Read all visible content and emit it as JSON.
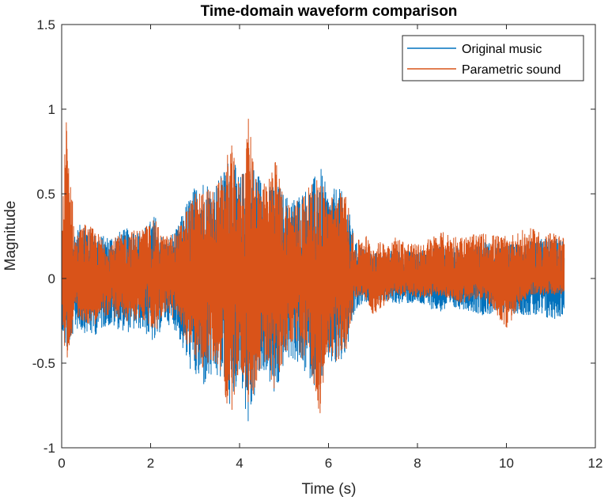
{
  "chart_data": {
    "type": "line",
    "title": "Time-domain waveform comparison",
    "xlabel": "Time (s)",
    "ylabel": "Magnitude",
    "xlim": [
      0,
      12
    ],
    "ylim": [
      -1,
      1.5
    ],
    "xticks": [
      0,
      2,
      4,
      6,
      8,
      10,
      12
    ],
    "yticks": [
      -1,
      -0.5,
      0,
      0.5,
      1,
      1.5
    ],
    "xtick_labels": [
      "0",
      "2",
      "4",
      "6",
      "8",
      "10",
      "12"
    ],
    "ytick_labels": [
      "-1",
      "-0.5",
      "0",
      "0.5",
      "1",
      "1.5"
    ],
    "grid": false,
    "legend_position": "top-right",
    "series": [
      {
        "name": "Original music",
        "color": "#0072BD",
        "x_range": [
          0,
          11.3
        ],
        "envelope": {
          "t": [
            0,
            0.1,
            0.3,
            0.5,
            0.7,
            1.0,
            1.5,
            1.8,
            2.1,
            2.3,
            2.6,
            2.8,
            3.0,
            3.2,
            3.4,
            3.6,
            3.8,
            4.0,
            4.2,
            4.4,
            4.6,
            4.8,
            5.0,
            5.2,
            5.4,
            5.6,
            5.8,
            6.0,
            6.2,
            6.4,
            6.6,
            6.8,
            7.0,
            7.5,
            8.0,
            8.5,
            9.0,
            9.5,
            10.0,
            10.5,
            11.0,
            11.3
          ],
          "upper": [
            0.25,
            0.32,
            0.28,
            0.35,
            0.27,
            0.25,
            0.3,
            0.28,
            0.38,
            0.22,
            0.3,
            0.45,
            0.55,
            0.6,
            0.55,
            0.62,
            0.75,
            0.6,
            0.7,
            0.65,
            0.52,
            0.6,
            0.5,
            0.48,
            0.52,
            0.55,
            0.68,
            0.5,
            0.55,
            0.48,
            0.22,
            0.18,
            0.15,
            0.17,
            0.16,
            0.2,
            0.18,
            0.22,
            0.2,
            0.22,
            0.25,
            0.22
          ],
          "lower": [
            -0.28,
            -0.45,
            -0.3,
            -0.32,
            -0.35,
            -0.28,
            -0.32,
            -0.3,
            -0.4,
            -0.25,
            -0.32,
            -0.5,
            -0.6,
            -0.65,
            -0.6,
            -0.62,
            -0.8,
            -0.55,
            -0.9,
            -0.62,
            -0.55,
            -0.75,
            -0.5,
            -0.48,
            -0.55,
            -0.6,
            -0.68,
            -0.5,
            -0.55,
            -0.45,
            -0.2,
            -0.15,
            -0.12,
            -0.15,
            -0.15,
            -0.2,
            -0.18,
            -0.22,
            -0.2,
            -0.22,
            -0.25,
            -0.22
          ]
        }
      },
      {
        "name": "Parametric sound",
        "color": "#D95319",
        "x_range": [
          0,
          11.3
        ],
        "envelope": {
          "t": [
            0,
            0.1,
            0.3,
            0.5,
            0.7,
            1.0,
            1.5,
            1.8,
            2.1,
            2.3,
            2.6,
            2.8,
            3.0,
            3.2,
            3.4,
            3.6,
            3.8,
            4.0,
            4.2,
            4.4,
            4.6,
            4.8,
            5.0,
            5.2,
            5.4,
            5.6,
            5.8,
            6.0,
            6.2,
            6.4,
            6.6,
            6.8,
            7.0,
            7.5,
            8.0,
            8.5,
            9.0,
            9.5,
            10.0,
            10.5,
            11.0,
            11.3
          ],
          "upper": [
            0.22,
            1.02,
            0.25,
            0.33,
            0.3,
            0.22,
            0.28,
            0.3,
            0.35,
            0.25,
            0.28,
            0.42,
            0.5,
            0.55,
            0.52,
            0.6,
            0.82,
            0.55,
            0.95,
            0.62,
            0.55,
            0.72,
            0.48,
            0.45,
            0.5,
            0.55,
            0.62,
            0.48,
            0.52,
            0.5,
            0.2,
            0.28,
            0.2,
            0.25,
            0.2,
            0.28,
            0.25,
            0.27,
            0.25,
            0.3,
            0.27,
            0.25
          ],
          "lower": [
            -0.2,
            -0.52,
            -0.22,
            -0.26,
            -0.28,
            -0.22,
            -0.26,
            -0.24,
            -0.33,
            -0.2,
            -0.26,
            -0.38,
            -0.48,
            -0.55,
            -0.5,
            -0.55,
            -0.9,
            -0.5,
            -0.78,
            -0.6,
            -0.5,
            -0.7,
            -0.45,
            -0.42,
            -0.48,
            -0.52,
            -0.82,
            -0.45,
            -0.5,
            -0.42,
            -0.12,
            -0.1,
            -0.22,
            -0.1,
            -0.12,
            -0.1,
            -0.15,
            -0.12,
            -0.3,
            -0.1,
            -0.1,
            -0.1
          ]
        }
      }
    ]
  }
}
